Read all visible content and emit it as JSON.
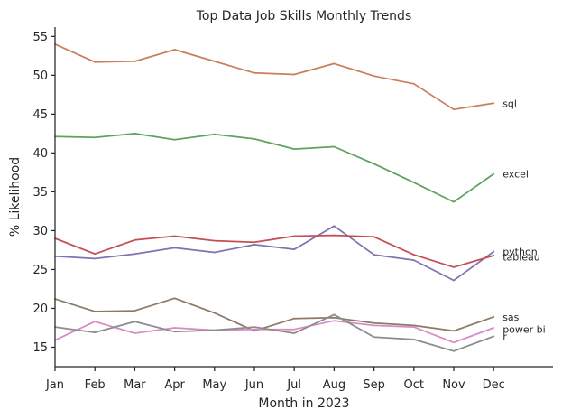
{
  "chart_data": {
    "type": "line",
    "title": "Top Data Job Skills Monthly Trends",
    "xlabel": "Month in 2023",
    "ylabel": "% Likelihood",
    "categories": [
      "Jan",
      "Feb",
      "Mar",
      "Apr",
      "May",
      "Jun",
      "Jul",
      "Aug",
      "Sep",
      "Oct",
      "Nov",
      "Dec"
    ],
    "ylim": [
      12.5,
      56.2
    ],
    "yticks": [
      15,
      20,
      25,
      30,
      35,
      40,
      45,
      50,
      55
    ],
    "grid": false,
    "series": [
      {
        "name": "sql",
        "color": "#c9805a",
        "values": [
          54.0,
          51.7,
          51.8,
          53.3,
          51.8,
          50.3,
          50.1,
          51.5,
          49.9,
          48.9,
          45.6,
          46.4
        ]
      },
      {
        "name": "excel",
        "color": "#5ea35e",
        "values": [
          42.1,
          42.0,
          42.5,
          41.7,
          42.4,
          41.8,
          40.5,
          40.8,
          38.6,
          36.2,
          33.7,
          37.3
        ]
      },
      {
        "name": "python",
        "color": "#8172b2",
        "values": [
          26.7,
          26.4,
          27.0,
          27.8,
          27.2,
          28.2,
          27.6,
          30.6,
          26.9,
          26.2,
          23.6,
          27.3
        ]
      },
      {
        "name": "tableau",
        "color": "#c44e52",
        "values": [
          29.0,
          27.0,
          28.8,
          29.3,
          28.7,
          28.5,
          29.3,
          29.4,
          29.2,
          26.9,
          25.3,
          26.8
        ]
      },
      {
        "name": "sas",
        "color": "#8c7a66",
        "values": [
          21.2,
          19.6,
          19.7,
          21.3,
          19.4,
          17.1,
          18.7,
          18.8,
          18.1,
          17.8,
          17.1,
          18.9
        ]
      },
      {
        "name": "power bi",
        "color": "#da8bc3",
        "values": [
          15.9,
          18.3,
          16.8,
          17.5,
          17.2,
          17.3,
          17.3,
          18.4,
          17.8,
          17.6,
          15.6,
          17.5
        ]
      },
      {
        "name": "r",
        "color": "#8c8c8c",
        "values": [
          17.6,
          16.9,
          18.3,
          17.0,
          17.2,
          17.6,
          16.8,
          19.2,
          16.3,
          16.0,
          14.5,
          16.4
        ]
      }
    ],
    "end_labels": [
      {
        "text": "sql",
        "y": 46.4
      },
      {
        "text": "excel",
        "y": 37.3
      },
      {
        "text": "python",
        "y": 27.3
      },
      {
        "text": "tableau",
        "y": 26.6
      },
      {
        "text": "sas",
        "y": 18.9
      },
      {
        "text": "power bi",
        "y": 17.3
      },
      {
        "text": "r",
        "y": 16.4
      }
    ]
  }
}
